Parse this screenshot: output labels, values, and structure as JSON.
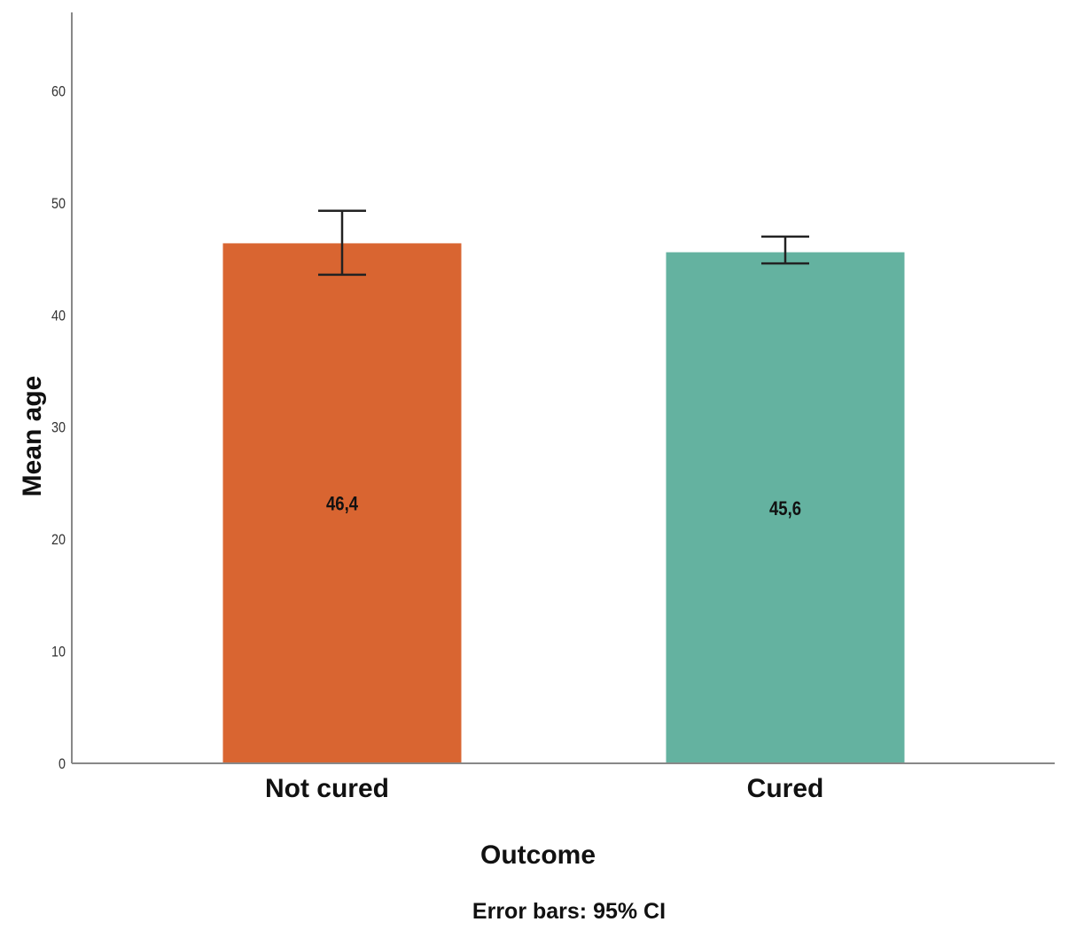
{
  "chart_data": {
    "type": "bar",
    "title": "",
    "xlabel": "Outcome",
    "ylabel": "Mean age",
    "ylim": [
      0,
      67
    ],
    "yticks": [
      0,
      10,
      20,
      30,
      40,
      50,
      60
    ],
    "categories": [
      "Not cured",
      "Cured"
    ],
    "values": [
      46.4,
      45.6
    ],
    "data_labels": [
      "46,4",
      "45,6"
    ],
    "error_bars": [
      [
        43.6,
        49.3
      ],
      [
        44.6,
        47.0
      ]
    ],
    "colors": [
      "#d96531",
      "#64b2a0"
    ],
    "footnote": "Error bars: 95% CI",
    "grid": false,
    "legend": "none"
  }
}
